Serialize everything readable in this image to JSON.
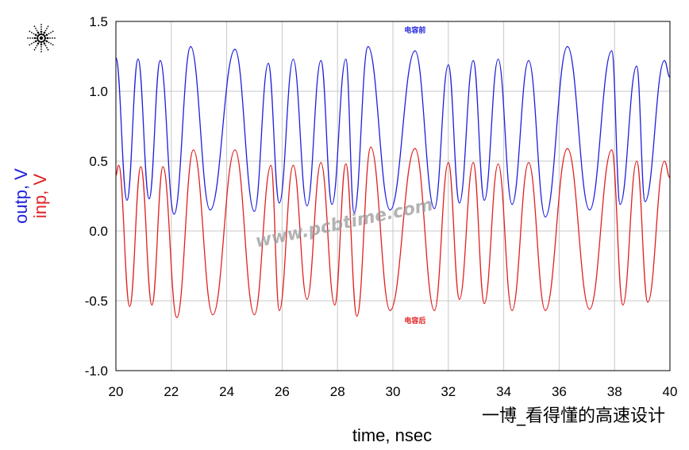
{
  "chart_data": {
    "type": "line",
    "xlabel": "time, nsec",
    "ylabel_parts": [
      {
        "text": "outp, V",
        "color": "#1f1fdc"
      },
      {
        "text": "inp, V",
        "color": "#e02020"
      }
    ],
    "xlim": [
      20,
      40
    ],
    "ylim": [
      -1.0,
      1.5
    ],
    "x_ticks": [
      "20",
      "22",
      "24",
      "26",
      "28",
      "30",
      "32",
      "34",
      "36",
      "38",
      "40"
    ],
    "y_ticks": [
      "1.5",
      "1.0",
      "0.5",
      "0.0",
      "-0.5",
      "-1.0"
    ],
    "grid": true,
    "series": [
      {
        "name": "outp",
        "color": "#1f1fdc",
        "x": [
          20.0,
          20.4,
          20.8,
          21.2,
          21.6,
          22.1,
          22.7,
          23.4,
          24.3,
          25.0,
          25.5,
          25.9,
          26.4,
          26.9,
          27.4,
          27.8,
          28.3,
          28.6,
          29.1,
          29.9,
          30.8,
          31.5,
          32.0,
          32.4,
          32.9,
          33.3,
          33.8,
          34.3,
          34.9,
          35.5,
          36.3,
          37.1,
          37.9,
          38.2,
          38.8,
          39.1,
          39.8,
          40.0
        ],
        "y": [
          1.24,
          0.22,
          1.23,
          0.23,
          1.22,
          0.12,
          1.32,
          0.15,
          1.3,
          0.14,
          1.2,
          0.2,
          1.23,
          0.18,
          1.22,
          0.19,
          1.23,
          0.13,
          1.32,
          0.15,
          1.29,
          0.16,
          1.19,
          0.2,
          1.22,
          0.22,
          1.23,
          0.19,
          1.22,
          0.1,
          1.32,
          0.15,
          1.29,
          0.19,
          1.18,
          0.21,
          1.22,
          1.1
        ]
      },
      {
        "name": "inp",
        "color": "#e02020",
        "x": [
          20.0,
          20.1,
          20.5,
          20.9,
          21.3,
          21.7,
          22.2,
          22.8,
          23.5,
          24.3,
          25.0,
          25.6,
          25.9,
          26.4,
          26.9,
          27.4,
          27.9,
          28.3,
          28.7,
          29.2,
          29.9,
          30.8,
          31.5,
          32.0,
          32.4,
          32.9,
          33.3,
          33.8,
          34.3,
          34.9,
          35.5,
          36.3,
          37.1,
          37.9,
          38.3,
          38.8,
          39.2,
          39.8,
          40.0
        ],
        "y": [
          0.4,
          0.47,
          -0.54,
          0.46,
          -0.53,
          0.46,
          -0.62,
          0.58,
          -0.6,
          0.58,
          -0.6,
          0.47,
          -0.57,
          0.47,
          -0.49,
          0.49,
          -0.53,
          0.48,
          -0.61,
          0.6,
          -0.57,
          0.59,
          -0.57,
          0.49,
          -0.49,
          0.49,
          -0.52,
          0.48,
          -0.57,
          0.49,
          -0.57,
          0.59,
          -0.56,
          0.58,
          -0.53,
          0.5,
          -0.51,
          0.5,
          0.38
        ]
      }
    ],
    "annotations": [
      {
        "text": "电容前",
        "color": "#1f1fdc",
        "x": 30.8,
        "y": 1.42
      },
      {
        "text": "电容后",
        "color": "#e02020",
        "x": 30.8,
        "y": -0.66
      }
    ]
  },
  "watermark_text": "www.pcbtime.com",
  "footer_text": "一博_看得懂的高速设计",
  "logo_icon": "sparkle-burst-icon"
}
